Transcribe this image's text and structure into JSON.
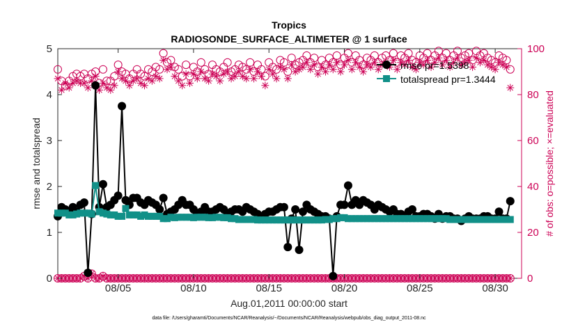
{
  "chart_data": {
    "type": "line",
    "title": "Tropics",
    "subtitle": "RADIOSONDE_SURFACE_ALTIMETER @ 1 surface",
    "xlabel": "Aug.01,2011 00:00:00 start",
    "ylabel": "rmse and totalspread",
    "ylabel_right": "# of obs: o=possible; ×=evaluated",
    "footnote": "data file: /Users/gharamti/Documents/NCAR/Reanalysis/~/Documents/NCAR/Reanalysis/webpub/obs_diag_output_2011-08.nc",
    "xlim": [
      1,
      31.75
    ],
    "ylim": [
      0,
      5
    ],
    "ylim_right": [
      0,
      100
    ],
    "x_ticks": [
      5,
      10,
      15,
      20,
      25,
      30
    ],
    "x_tick_labels": [
      "08/05",
      "08/10",
      "08/15",
      "08/20",
      "08/25",
      "08/30"
    ],
    "y_ticks": [
      0,
      1,
      2,
      3,
      4,
      5
    ],
    "y_tick_labels": [
      "0",
      "1",
      "2",
      "3",
      "4",
      "5"
    ],
    "y_ticks_right": [
      0,
      20,
      40,
      60,
      80,
      100
    ],
    "y_tick_labels_right": [
      "0",
      "20",
      "40",
      "60",
      "80",
      "100"
    ],
    "legend_position": "top-right",
    "x_step": 0.25,
    "x_start": 1,
    "series": [
      {
        "name": "rmse pr=1.5398",
        "color": "#000000",
        "values": [
          1.35,
          1.55,
          1.5,
          1.45,
          1.55,
          1.45,
          1.6,
          1.65,
          0.12,
          1.4,
          4.2,
          1.55,
          2.05,
          1.55,
          1.6,
          1.7,
          1.8,
          3.75,
          1.7,
          1.6,
          1.75,
          1.75,
          1.65,
          1.6,
          1.7,
          1.65,
          1.6,
          1.5,
          1.75,
          1.4,
          1.45,
          1.5,
          1.6,
          1.7,
          1.6,
          1.6,
          1.5,
          1.4,
          1.45,
          1.55,
          1.45,
          1.45,
          1.5,
          1.55,
          1.5,
          1.4,
          1.45,
          1.5,
          1.5,
          1.45,
          1.55,
          1.5,
          1.45,
          1.4,
          1.35,
          1.4,
          1.45,
          1.45,
          1.5,
          1.55,
          1.55,
          0.68,
          1.3,
          1.5,
          0.62,
          1.45,
          1.6,
          1.5,
          1.45,
          1.4,
          1.35,
          1.35,
          1.3,
          0.05,
          1.35,
          1.6,
          1.6,
          2.02,
          1.6,
          1.7,
          1.6,
          1.7,
          1.65,
          1.6,
          1.5,
          1.6,
          1.55,
          1.5,
          1.45,
          1.5,
          1.4,
          1.4,
          1.35,
          1.45,
          1.5,
          1.35,
          1.35,
          1.4,
          1.4,
          1.35,
          1.3,
          1.4,
          1.3,
          1.35,
          1.35,
          1.3,
          1.3,
          1.25,
          1.3,
          1.35,
          1.3,
          1.3,
          1.3,
          1.35,
          1.35,
          1.3,
          1.3,
          1.45,
          1.3,
          1.3,
          1.68
        ]
      },
      {
        "name": "totalspread pr=1.3444",
        "color": "#119088",
        "values": [
          1.42,
          1.42,
          1.42,
          1.38,
          1.38,
          1.4,
          1.42,
          1.42,
          1.42,
          1.4,
          2.02,
          1.45,
          1.42,
          1.4,
          1.38,
          1.38,
          1.35,
          1.35,
          1.52,
          1.38,
          1.38,
          1.38,
          1.35,
          1.38,
          1.35,
          1.35,
          1.35,
          1.35,
          1.3,
          1.3,
          1.33,
          1.32,
          1.33,
          1.33,
          1.33,
          1.33,
          1.32,
          1.33,
          1.33,
          1.33,
          1.32,
          1.32,
          1.33,
          1.33,
          1.32,
          1.32,
          1.3,
          1.3,
          1.28,
          1.28,
          1.28,
          1.28,
          1.28,
          1.27,
          1.27,
          1.27,
          1.27,
          1.27,
          1.27,
          1.27,
          1.27,
          1.27,
          1.27,
          1.27,
          1.27,
          1.27,
          1.27,
          1.27,
          1.27,
          1.27,
          1.27,
          1.28,
          1.28,
          1.3,
          1.3,
          1.32,
          1.32,
          1.3,
          1.3,
          1.3,
          1.3,
          1.3,
          1.3,
          1.3,
          1.3,
          1.3,
          1.3,
          1.3,
          1.3,
          1.3,
          1.3,
          1.3,
          1.3,
          1.3,
          1.3,
          1.3,
          1.3,
          1.3,
          1.3,
          1.3,
          1.3,
          1.3,
          1.3,
          1.3,
          1.28,
          1.28,
          1.28,
          1.28,
          1.28,
          1.28,
          1.28,
          1.28,
          1.28,
          1.28,
          1.28,
          1.28,
          1.28,
          1.28,
          1.28,
          1.28,
          1.28
        ]
      },
      {
        "name": "obs possible",
        "color": "#cc0055",
        "axis": "right",
        "marker": "circle",
        "values": [
          91,
          86,
          84,
          86,
          88,
          89,
          88,
          89,
          87,
          89,
          90,
          85,
          91,
          86,
          86,
          88,
          93,
          90,
          89,
          87,
          89,
          91,
          89,
          88,
          91,
          90,
          92,
          91,
          98,
          94,
          95,
          92,
          91,
          88,
          93,
          88,
          92,
          90,
          94,
          91,
          89,
          93,
          91,
          90,
          92,
          94,
          90,
          91,
          93,
          92,
          91,
          94,
          90,
          93,
          91,
          88,
          94,
          92,
          91,
          95,
          94,
          90,
          96,
          93,
          94,
          95,
          97,
          94,
          96,
          92,
          95,
          93,
          96,
          94,
          97,
          93,
          96,
          98,
          94,
          97,
          95,
          93,
          96,
          95,
          97,
          94,
          96,
          97,
          95,
          98,
          94,
          97,
          96,
          98,
          95,
          94,
          97,
          96,
          98,
          95,
          97,
          99,
          96,
          98,
          95,
          97,
          99,
          96,
          97,
          98,
          95,
          99,
          97,
          98,
          96,
          95,
          94,
          97,
          96,
          95,
          91
        ]
      },
      {
        "name": "obs evaluated",
        "color": "#cc0055",
        "axis": "right",
        "marker": "asterisk",
        "values": [
          87,
          82,
          85,
          83,
          85,
          86,
          85,
          85,
          83,
          86,
          88,
          82,
          85,
          83,
          82,
          84,
          90,
          87,
          86,
          84,
          86,
          87,
          85,
          84,
          87,
          86,
          88,
          87,
          95,
          91,
          92,
          88,
          86,
          84,
          89,
          85,
          89,
          87,
          90,
          87,
          86,
          89,
          88,
          86,
          89,
          90,
          87,
          88,
          90,
          88,
          87,
          91,
          87,
          90,
          88,
          84,
          91,
          89,
          87,
          92,
          91,
          87,
          93,
          90,
          91,
          92,
          94,
          91,
          93,
          89,
          92,
          90,
          93,
          91,
          94,
          90,
          93,
          95,
          91,
          94,
          92,
          90,
          93,
          92,
          94,
          91,
          93,
          94,
          92,
          95,
          91,
          94,
          93,
          95,
          92,
          91,
          94,
          93,
          95,
          92,
          94,
          96,
          93,
          95,
          92,
          94,
          96,
          93,
          94,
          95,
          92,
          96,
          94,
          95,
          93,
          92,
          91,
          94,
          93,
          92,
          83
        ]
      },
      {
        "name": "obs possible (bottom)",
        "color": "#cc0055",
        "axis": "right",
        "marker": "circle",
        "values": [
          0,
          0,
          0,
          0,
          0,
          0,
          0,
          1,
          0,
          2,
          0,
          0,
          1,
          0,
          0,
          0,
          0,
          0,
          0,
          0,
          0,
          0,
          0,
          0,
          0,
          0,
          0,
          0,
          0,
          0,
          0,
          0,
          0,
          0,
          0,
          0,
          0,
          0,
          0,
          0,
          0,
          0,
          0,
          0,
          0,
          0,
          0,
          0,
          0,
          0,
          0,
          0,
          0,
          0,
          0,
          0,
          0,
          0,
          0,
          0,
          0,
          0,
          0,
          0,
          0,
          0,
          0,
          0,
          0,
          0,
          0,
          0,
          0,
          0,
          0,
          0,
          0,
          0,
          0,
          0,
          0,
          0,
          0,
          0,
          0,
          0,
          0,
          0,
          0,
          0,
          0,
          0,
          0,
          0,
          0,
          0,
          0,
          0,
          0,
          0,
          0,
          0,
          0,
          0,
          0,
          0,
          0,
          0,
          0,
          0,
          0,
          0,
          0,
          0,
          0,
          0,
          0,
          0,
          0,
          0,
          0
        ]
      },
      {
        "name": "obs evaluated (bottom)",
        "color": "#cc0055",
        "axis": "right",
        "marker": "asterisk",
        "values": [
          0,
          0,
          0,
          0,
          0,
          0,
          0,
          1,
          0,
          2,
          0,
          0,
          1,
          0,
          0,
          0,
          0,
          0,
          0,
          0,
          0,
          0,
          0,
          0,
          0,
          0,
          0,
          0,
          0,
          0,
          0,
          0,
          0,
          0,
          0,
          0,
          0,
          0,
          0,
          0,
          0,
          0,
          0,
          0,
          0,
          0,
          0,
          0,
          0,
          0,
          0,
          0,
          0,
          0,
          0,
          0,
          0,
          0,
          0,
          0,
          0,
          0,
          0,
          0,
          0,
          0,
          0,
          0,
          0,
          0,
          0,
          0,
          0,
          0,
          0,
          0,
          0,
          0,
          0,
          0,
          0,
          0,
          0,
          0,
          0,
          0,
          0,
          0,
          0,
          0,
          0,
          0,
          0,
          0,
          0,
          0,
          0,
          0,
          0,
          0,
          0,
          0,
          0,
          0,
          0,
          0,
          0,
          0,
          0,
          0,
          0,
          0,
          0,
          0,
          0,
          0,
          0,
          0,
          0,
          0,
          0
        ]
      }
    ]
  },
  "colors": {
    "axis": "#262626",
    "right_axis": "#cc0055",
    "rmse": "#000000",
    "spread": "#119088"
  }
}
